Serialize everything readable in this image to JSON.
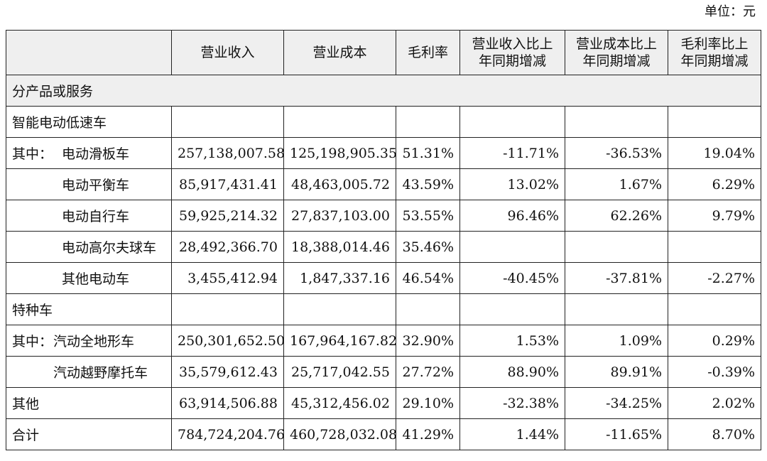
{
  "unit_label": "单位：元",
  "columns": {
    "name": "",
    "revenue": "营业收入",
    "cost": "营业成本",
    "margin": "毛利率",
    "revenue_change": [
      "营业收入比上",
      "年同期增减"
    ],
    "cost_change": [
      "营业成本比上",
      "年同期增减"
    ],
    "margin_change": [
      "毛利率比上",
      "年同期增减"
    ]
  },
  "section": "分产品或服务",
  "group1": {
    "label": "智能电动低速车",
    "prefix": "其中：",
    "rows": [
      {
        "name": "电动滑板车",
        "revenue": "257,138,007.58",
        "cost": "125,198,905.35",
        "margin": "51.31%",
        "revenue_change": "-11.71%",
        "cost_change": "-36.53%",
        "margin_change": "19.04%"
      },
      {
        "name": "电动平衡车",
        "revenue": "85,917,431.41",
        "cost": "48,463,005.72",
        "margin": "43.59%",
        "revenue_change": "13.02%",
        "cost_change": "1.67%",
        "margin_change": "6.29%"
      },
      {
        "name": "电动自行车",
        "revenue": "59,925,214.32",
        "cost": "27,837,103.00",
        "margin": "53.55%",
        "revenue_change": "96.46%",
        "cost_change": "62.26%",
        "margin_change": "9.79%"
      },
      {
        "name": "电动高尔夫球车",
        "revenue": "28,492,366.70",
        "cost": "18,388,014.46",
        "margin": "35.46%",
        "revenue_change": "",
        "cost_change": "",
        "margin_change": ""
      },
      {
        "name": "其他电动车",
        "revenue": "3,455,412.94",
        "cost": "1,847,337.16",
        "margin": "46.54%",
        "revenue_change": "-40.45%",
        "cost_change": "-37.81%",
        "margin_change": "-2.27%"
      }
    ]
  },
  "group2": {
    "label": "特种车",
    "prefix": "其中：",
    "rows": [
      {
        "name": "汽动全地形车",
        "revenue": "250,301,652.50",
        "cost": "167,964,167.82",
        "margin": "32.90%",
        "revenue_change": "1.53%",
        "cost_change": "1.09%",
        "margin_change": "0.29%"
      },
      {
        "name": "汽动越野摩托车",
        "revenue": "35,579,612.43",
        "cost": "25,717,042.55",
        "margin": "27.72%",
        "revenue_change": "88.90%",
        "cost_change": "89.91%",
        "margin_change": "-0.39%"
      }
    ]
  },
  "other": {
    "name": "其他",
    "revenue": "63,914,506.88",
    "cost": "45,312,456.02",
    "margin": "29.10%",
    "revenue_change": "-32.38%",
    "cost_change": "-34.25%",
    "margin_change": "2.02%"
  },
  "total": {
    "name": "合计",
    "revenue": "784,724,204.76",
    "cost": "460,728,032.08",
    "margin": "41.29%",
    "revenue_change": "1.44%",
    "cost_change": "-11.65%",
    "margin_change": "8.70%"
  }
}
